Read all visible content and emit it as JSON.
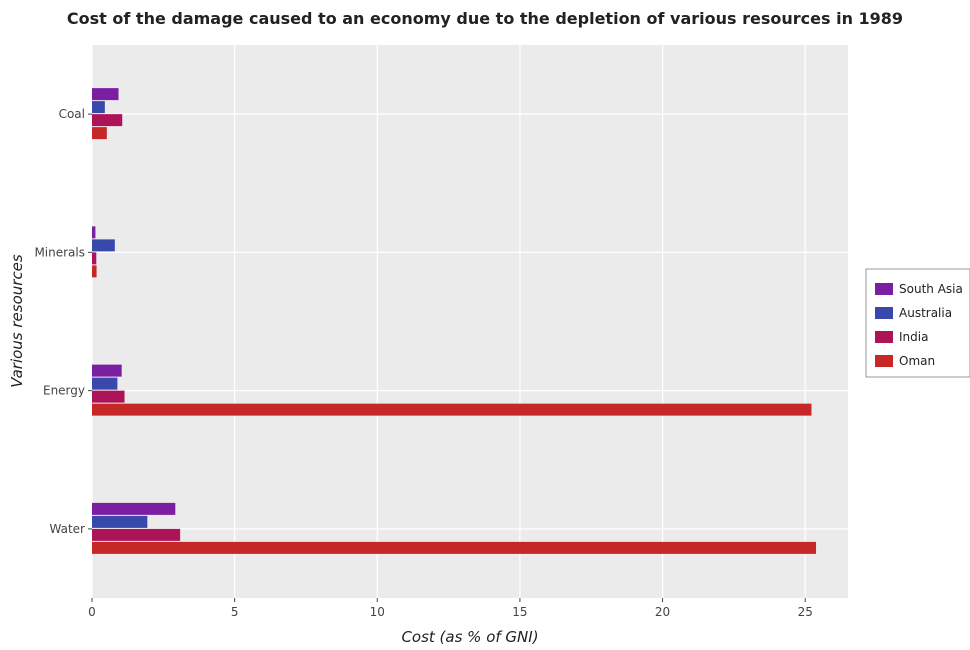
{
  "chart_data": {
    "type": "bar",
    "orientation": "horizontal",
    "title": "Cost of the damage caused to an economy due to the depletion of various resources in 1989",
    "xlabel": "Cost (as % of GNI)",
    "ylabel": "Various resources",
    "categories": [
      "Coal",
      "Minerals",
      "Energy",
      "Water"
    ],
    "series": [
      {
        "name": "South Asia",
        "color": "#7b1fa2",
        "values": [
          0.93,
          0.12,
          1.04,
          2.92
        ]
      },
      {
        "name": "Australia",
        "color": "#3949ab",
        "values": [
          0.45,
          0.8,
          0.89,
          1.94
        ]
      },
      {
        "name": "India",
        "color": "#ad1457",
        "values": [
          1.06,
          0.15,
          1.14,
          3.09
        ]
      },
      {
        "name": "Oman",
        "color": "#c62828",
        "values": [
          0.52,
          0.16,
          25.22,
          25.38
        ]
      }
    ],
    "xlim": [
      0,
      26.5
    ],
    "xticks": [
      0,
      5,
      10,
      15,
      20,
      25
    ],
    "xtick_labels": [
      "0",
      "5",
      "10",
      "15",
      "20",
      "25"
    ],
    "grid": true,
    "legend_position": "right"
  }
}
